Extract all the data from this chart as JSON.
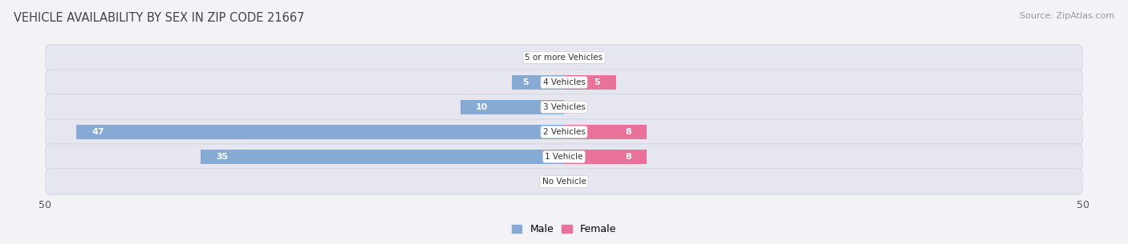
{
  "title": "VEHICLE AVAILABILITY BY SEX IN ZIP CODE 21667",
  "source": "Source: ZipAtlas.com",
  "categories": [
    "No Vehicle",
    "1 Vehicle",
    "2 Vehicles",
    "3 Vehicles",
    "4 Vehicles",
    "5 or more Vehicles"
  ],
  "male_values": [
    0,
    35,
    47,
    10,
    5,
    0
  ],
  "female_values": [
    0,
    8,
    8,
    0,
    5,
    0
  ],
  "male_color": "#85aad4",
  "female_color": "#e8729a",
  "male_label": "Male",
  "female_label": "Female",
  "xlim": 50,
  "bar_height": 0.58,
  "bg_color": "#f2f2f7",
  "row_bg_color": "#e6e6f0",
  "title_fontsize": 10.5,
  "source_fontsize": 8,
  "tick_fontsize": 9,
  "bar_label_fontsize": 8,
  "category_fontsize": 7.5
}
